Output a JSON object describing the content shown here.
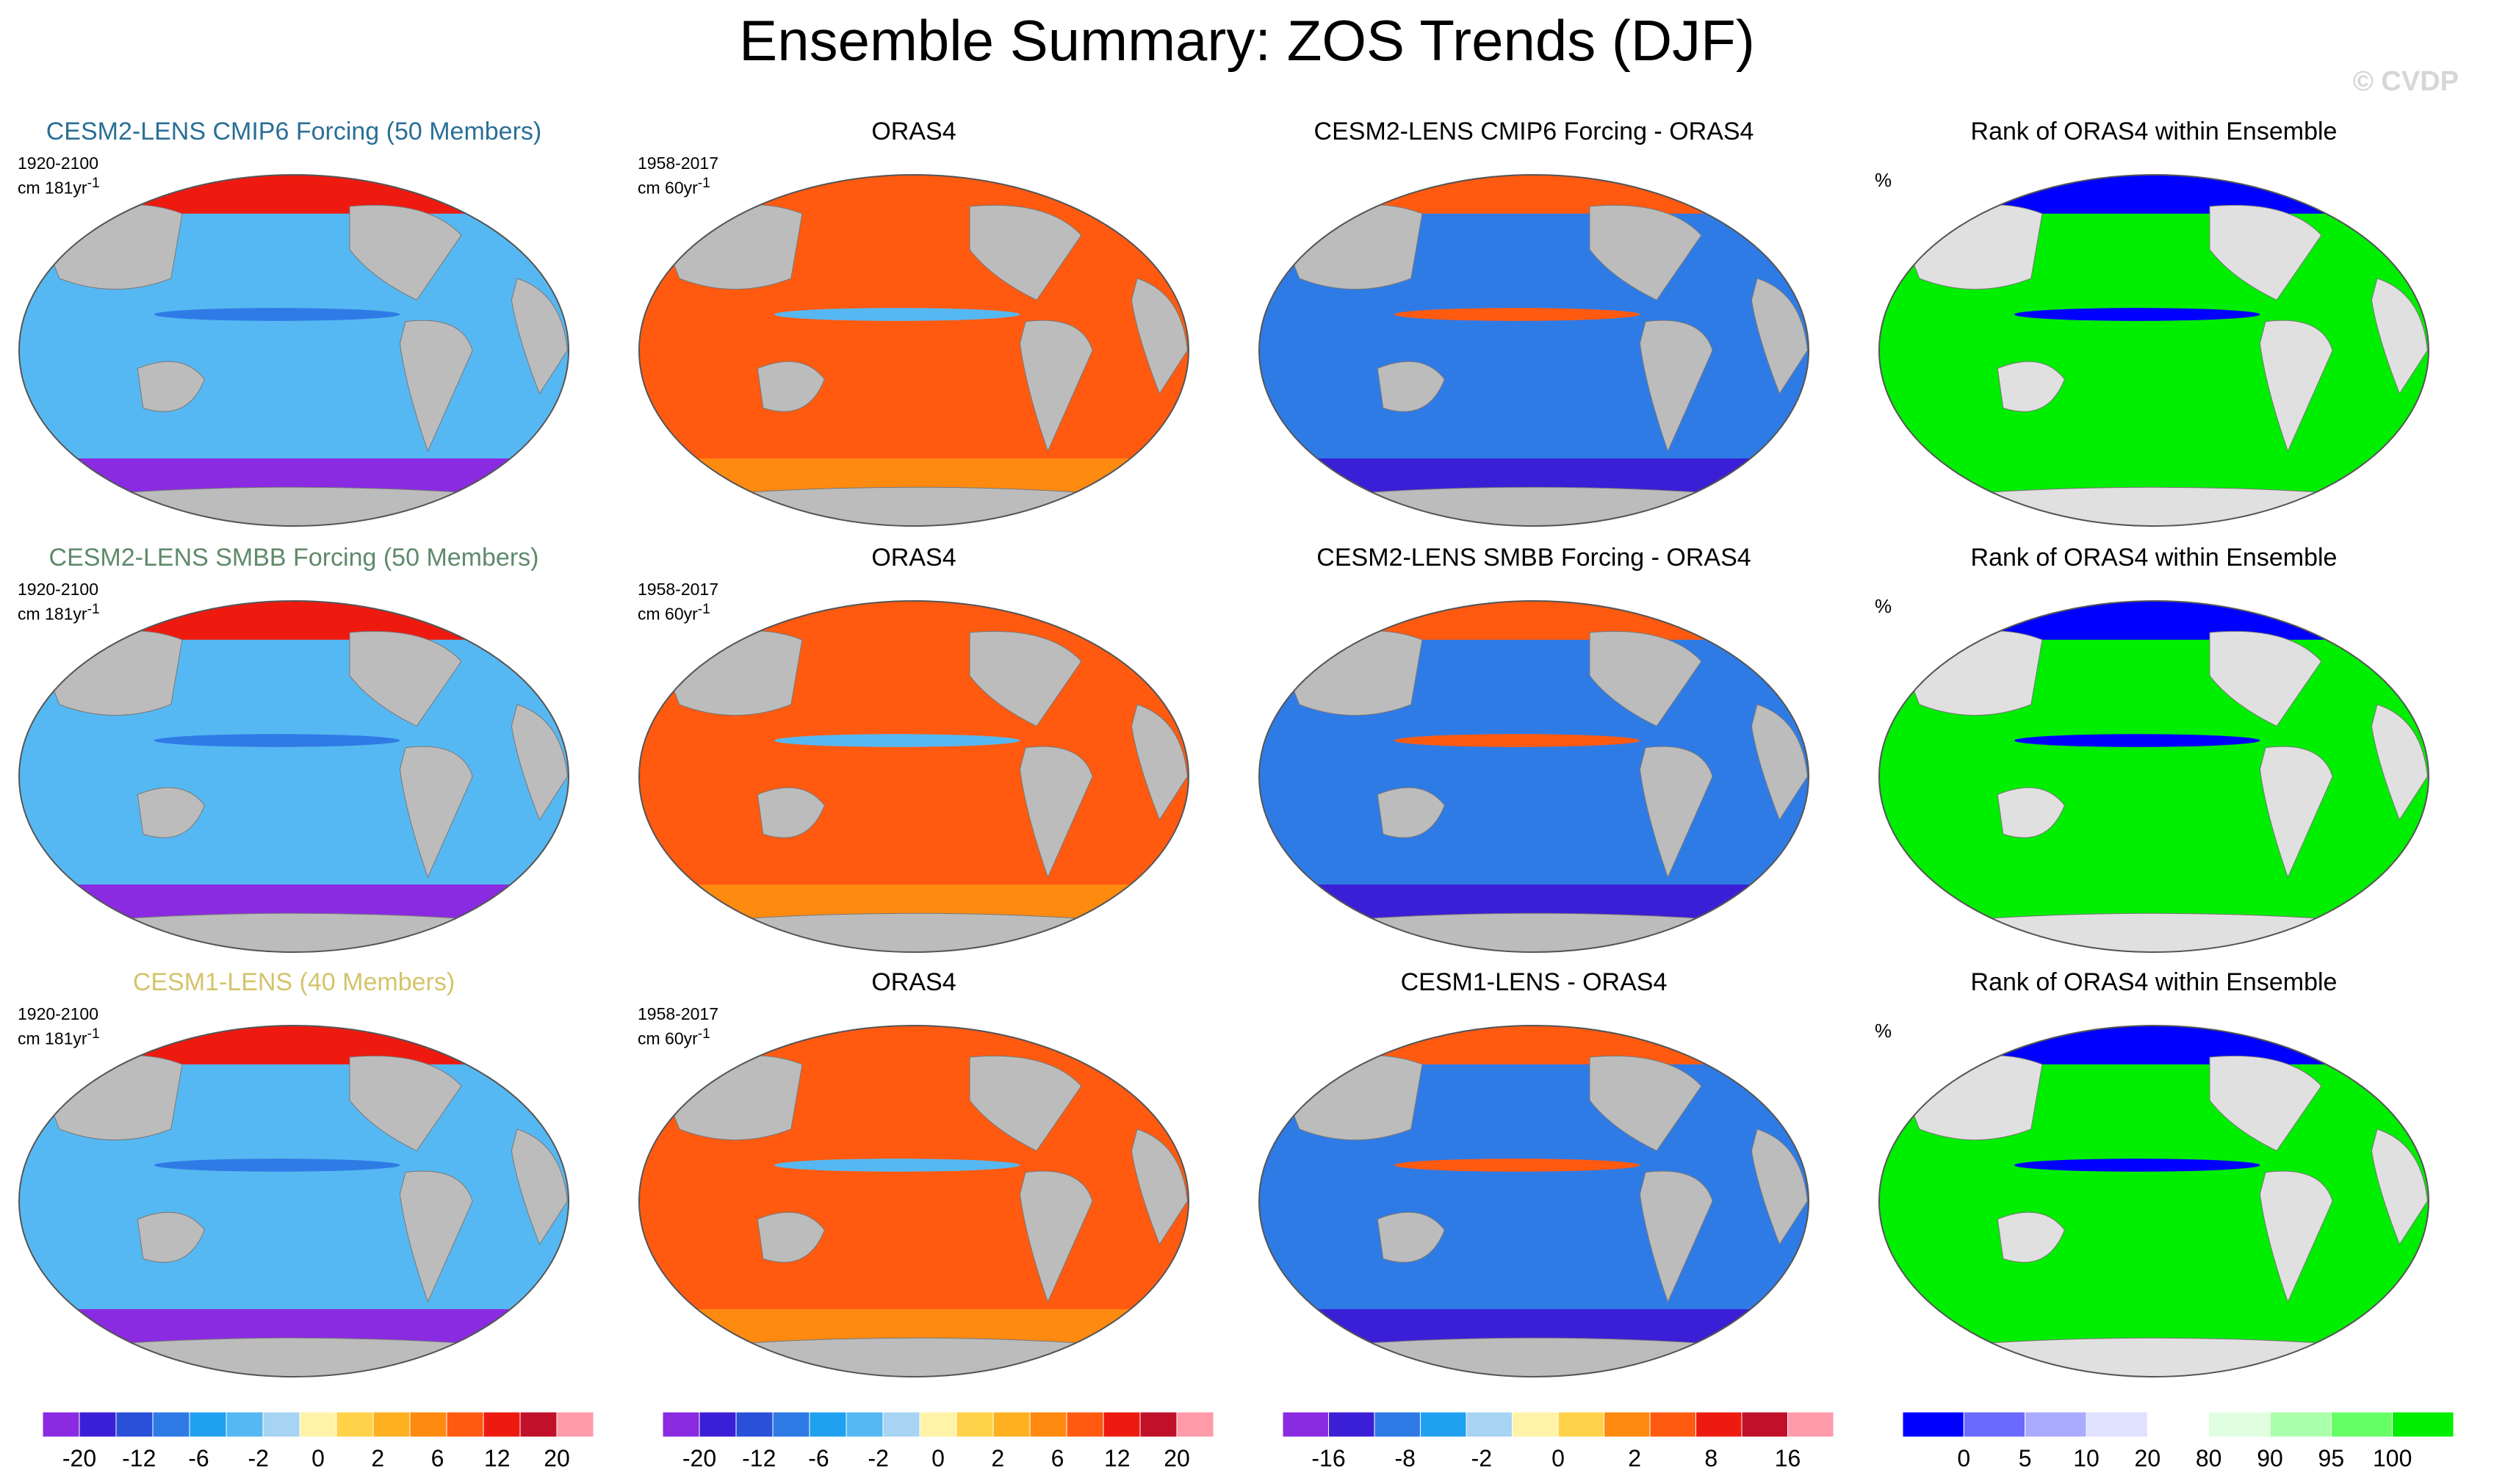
{
  "page": {
    "title": "Ensemble Summary: ZOS Trends (DJF)",
    "watermark": "© CVDP"
  },
  "chart_data": {
    "type": "heatmap",
    "rows": [
      {
        "model_title": "CESM2-LENS CMIP6 Forcing (50 Members)",
        "model_title_color": "#2a6f97",
        "model_period": "1920-2100",
        "model_units": "cm 181yr",
        "obs_title": "ORAS4",
        "obs_period": "1958-2017",
        "obs_units": "cm 60yr",
        "diff_title": "CESM2-LENS CMIP6 Forcing - ORAS4",
        "rank_title": "Rank of ORAS4 within Ensemble",
        "rank_units": "%"
      },
      {
        "model_title": "CESM2-LENS SMBB Forcing (50 Members)",
        "model_title_color": "#5f8a6a",
        "model_period": "1920-2100",
        "model_units": "cm 181yr",
        "obs_title": "ORAS4",
        "obs_period": "1958-2017",
        "obs_units": "cm 60yr",
        "diff_title": "CESM2-LENS SMBB Forcing - ORAS4",
        "rank_title": "Rank of ORAS4 within Ensemble",
        "rank_units": "%"
      },
      {
        "model_title": "CESM1-LENS (40 Members)",
        "model_title_color": "#d4c46a",
        "model_period": "1920-2100",
        "model_units": "cm 181yr",
        "obs_title": "ORAS4",
        "obs_period": "1958-2017",
        "obs_units": "cm 60yr",
        "diff_title": "CESM1-LENS - ORAS4",
        "rank_title": "Rank of ORAS4 within Ensemble",
        "rank_units": "%"
      }
    ],
    "units_superscript": "-1",
    "colorbars": [
      {
        "labels": [
          "-20",
          "-12",
          "-6",
          "-2",
          "0",
          "2",
          "6",
          "12",
          "20"
        ],
        "colors": [
          "#8a2be2",
          "#3a1fd6",
          "#2a4fd8",
          "#2f7be6",
          "#1fa0f0",
          "#56b8f2",
          "#a6d4f2",
          "#fff3a8",
          "#ffd24a",
          "#ffb020",
          "#ff8a10",
          "#ff5a10",
          "#ee1a10",
          "#c0102a",
          "#ff9aa8"
        ]
      },
      {
        "labels": [
          "-20",
          "-12",
          "-6",
          "-2",
          "0",
          "2",
          "6",
          "12",
          "20"
        ],
        "colors": [
          "#8a2be2",
          "#3a1fd6",
          "#2a4fd8",
          "#2f7be6",
          "#1fa0f0",
          "#56b8f2",
          "#a6d4f2",
          "#fff3a8",
          "#ffd24a",
          "#ffb020",
          "#ff8a10",
          "#ff5a10",
          "#ee1a10",
          "#c0102a",
          "#ff9aa8"
        ]
      },
      {
        "labels": [
          "-16",
          "-8",
          "-2",
          "0",
          "2",
          "8",
          "16"
        ],
        "colors": [
          "#8a2be2",
          "#3a1fd6",
          "#2f7be6",
          "#1fa0f0",
          "#a6d4f2",
          "#fff3a8",
          "#ffd24a",
          "#ff8a10",
          "#ff5a10",
          "#ee1a10",
          "#c0102a",
          "#ff9aa8"
        ]
      },
      {
        "labels": [
          "0",
          "5",
          "10",
          "20",
          "80",
          "90",
          "95",
          "100"
        ],
        "colors": [
          "#0000ff",
          "#6a6aff",
          "#aaaaff",
          "#e0e0ff",
          "#ffffff",
          "#e0ffe0",
          "#aaffaa",
          "#66ff66",
          "#00ee00"
        ]
      }
    ],
    "map_colors": {
      "land": "#bcbcbc",
      "land_rank": "#e0e0e0",
      "ocean_model": "#56b8f2",
      "ocean_obs": "#ff5a10",
      "ocean_diff": "#2f7be6",
      "ocean_rank": "#00ee00"
    }
  }
}
